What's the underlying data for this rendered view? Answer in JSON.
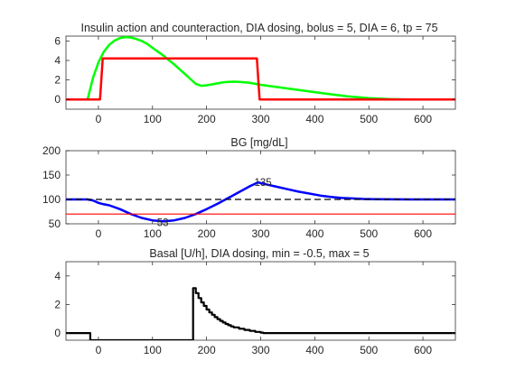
{
  "chart_data": [
    {
      "type": "line",
      "title": "Insulin action and counteraction, DIA dosing, bolus = 5, DIA = 6, tp = 75",
      "xlim": [
        -60,
        660
      ],
      "ylim": [
        -1,
        6.5
      ],
      "xticks": [
        0,
        100,
        200,
        300,
        400,
        500,
        600
      ],
      "yticks": [
        0,
        2,
        4,
        6
      ],
      "grid": false,
      "series": [
        {
          "color": "#00ff00",
          "x": [
            -20,
            -10,
            0,
            10,
            20,
            30,
            40,
            50,
            60,
            70,
            80,
            90,
            100,
            110,
            120,
            130,
            140,
            150,
            160,
            170,
            180,
            190,
            200,
            210,
            220,
            230,
            240,
            250,
            260,
            270,
            280,
            290,
            300,
            320,
            340,
            360,
            380,
            400,
            420,
            440,
            460,
            480,
            500,
            520,
            540,
            560,
            580,
            600,
            620,
            660
          ],
          "y": [
            0,
            2.2,
            3.8,
            4.9,
            5.6,
            6.05,
            6.3,
            6.4,
            6.35,
            6.2,
            6.0,
            5.7,
            5.3,
            4.9,
            4.5,
            4.05,
            3.6,
            3.1,
            2.6,
            2.1,
            1.6,
            1.4,
            1.45,
            1.55,
            1.65,
            1.75,
            1.8,
            1.82,
            1.8,
            1.75,
            1.7,
            1.6,
            1.5,
            1.35,
            1.2,
            1.05,
            0.9,
            0.75,
            0.6,
            0.45,
            0.32,
            0.22,
            0.13,
            0.07,
            0.03,
            0.01,
            0,
            0,
            0,
            0
          ]
        },
        {
          "color": "#ff0000",
          "x": [
            -60,
            3,
            8,
            293,
            298,
            660
          ],
          "y": [
            0,
            0,
            4.2,
            4.2,
            0,
            0
          ]
        }
      ]
    },
    {
      "type": "line",
      "title": "BG [mg/dL]",
      "xlim": [
        -60,
        660
      ],
      "ylim": [
        50,
        200
      ],
      "xticks": [
        0,
        100,
        200,
        300,
        400,
        500,
        600
      ],
      "yticks": [
        50,
        100,
        150,
        200
      ],
      "grid": false,
      "annotations": [
        {
          "x": 300,
          "y": 135,
          "text": "135"
        },
        {
          "x": 120,
          "y": 53,
          "text": "53"
        }
      ],
      "series": [
        {
          "color": "#0000ff",
          "x": [
            -60,
            -20,
            -10,
            0,
            10,
            20,
            40,
            60,
            80,
            100,
            120,
            140,
            160,
            180,
            200,
            220,
            240,
            260,
            280,
            295,
            310,
            330,
            350,
            370,
            390,
            410,
            430,
            450,
            470,
            490,
            510,
            540,
            580,
            620,
            660
          ],
          "y": [
            100,
            100,
            98,
            93,
            90,
            88,
            80,
            70,
            62,
            57,
            55,
            57,
            62,
            70,
            80,
            91,
            103,
            115,
            127,
            135,
            131,
            126,
            121,
            116,
            112,
            108,
            105,
            103,
            102,
            101,
            100.5,
            100.2,
            100,
            100,
            100
          ]
        },
        {
          "color": "#000000",
          "dashed": true,
          "x": [
            -60,
            660
          ],
          "y": [
            100,
            100
          ]
        },
        {
          "color": "#ff0000",
          "x": [
            -60,
            660
          ],
          "y": [
            70,
            70
          ]
        }
      ]
    },
    {
      "type": "line",
      "title": "Basal [U/h], DIA dosing, min = -0.5, max = 5",
      "xlim": [
        -60,
        660
      ],
      "ylim": [
        -0.5,
        5
      ],
      "xticks": [
        0,
        100,
        200,
        300,
        400,
        500,
        600
      ],
      "yticks": [
        0,
        2,
        4
      ],
      "grid": false,
      "step": true,
      "series": [
        {
          "color": "#000000",
          "x": [
            -60,
            -15,
            -15,
            175,
            175,
            180,
            185,
            190,
            195,
            200,
            205,
            210,
            215,
            220,
            225,
            230,
            235,
            240,
            245,
            250,
            260,
            270,
            280,
            290,
            300,
            305,
            660
          ],
          "y": [
            0,
            0,
            -0.5,
            -0.5,
            3.15,
            2.8,
            2.45,
            2.15,
            1.9,
            1.65,
            1.45,
            1.28,
            1.12,
            0.98,
            0.85,
            0.74,
            0.64,
            0.55,
            0.47,
            0.4,
            0.3,
            0.22,
            0.15,
            0.08,
            0.03,
            0,
            0
          ]
        }
      ]
    }
  ]
}
